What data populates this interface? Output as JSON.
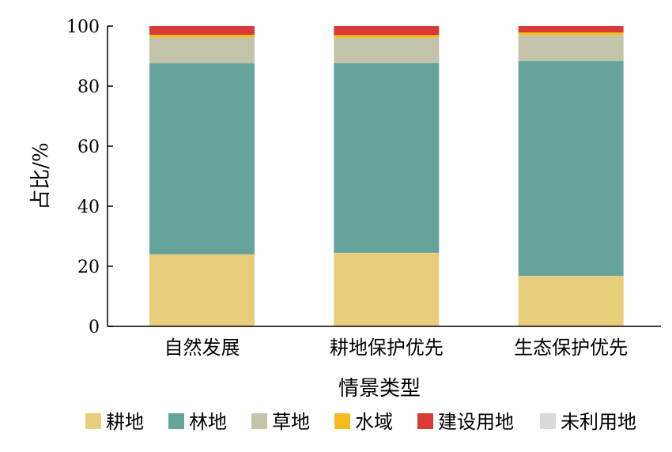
{
  "chart_data": {
    "type": "bar",
    "stacked": true,
    "percent": true,
    "title": "",
    "xlabel": "情景类型",
    "ylabel": "占比/%",
    "ylim": [
      0,
      100
    ],
    "yticks": [
      0,
      20,
      40,
      60,
      80,
      100
    ],
    "categories": [
      "自然发展",
      "耕地保护优先",
      "生态保护优先"
    ],
    "legend_position": "bottom",
    "grid": false,
    "series": [
      {
        "name": "耕地",
        "color": "#E8CE7A",
        "values": [
          24.0,
          24.5,
          16.8
        ]
      },
      {
        "name": "林地",
        "color": "#66A39B",
        "values": [
          63.6,
          63.2,
          71.6
        ]
      },
      {
        "name": "草地",
        "color": "#C2C3A8",
        "values": [
          8.6,
          8.4,
          8.6
        ]
      },
      {
        "name": "水域",
        "color": "#F1BC1C",
        "values": [
          0.9,
          0.9,
          0.9
        ]
      },
      {
        "name": "建设用地",
        "color": "#D93A35",
        "values": [
          2.9,
          3.0,
          2.1
        ]
      },
      {
        "name": "未利用地",
        "color": "#D9D9D9",
        "values": [
          0.0,
          0.0,
          0.0
        ]
      }
    ]
  }
}
